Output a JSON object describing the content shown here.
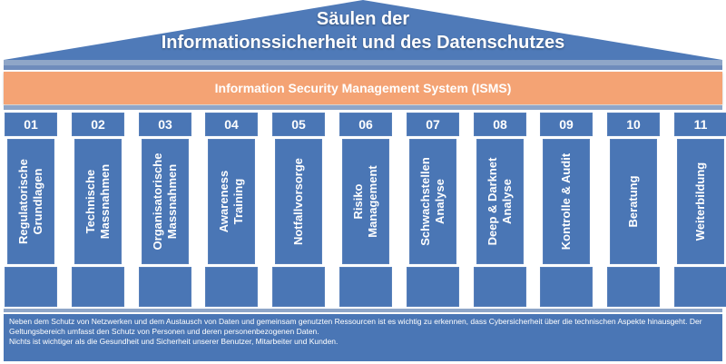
{
  "roof": {
    "title_line1": "Säulen der",
    "title_line2": "Informationssicherheit und des Datenschutzes"
  },
  "isms": {
    "label": "Information Security Management System (ISMS)"
  },
  "pillars": [
    {
      "number": "01",
      "label_line1": "Regulatorische",
      "label_line2": "Grundlagen"
    },
    {
      "number": "02",
      "label_line1": "Technische",
      "label_line2": "Massnahmen"
    },
    {
      "number": "03",
      "label_line1": "Organisatorische",
      "label_line2": "Massnahmen"
    },
    {
      "number": "04",
      "label_line1": "Awareness",
      "label_line2": "Training"
    },
    {
      "number": "05",
      "label_line1": "Notfallvorsorge",
      "label_line2": ""
    },
    {
      "number": "06",
      "label_line1": "Risiko",
      "label_line2": "Management"
    },
    {
      "number": "07",
      "label_line1": "Schwachstellen",
      "label_line2": "Analyse"
    },
    {
      "number": "08",
      "label_line1": "Deep & Darknet",
      "label_line2": "Analyse"
    },
    {
      "number": "09",
      "label_line1": "Kontrolle & Audit",
      "label_line2": ""
    },
    {
      "number": "10",
      "label_line1": "Beratung",
      "label_line2": ""
    },
    {
      "number": "11",
      "label_line1": "Weiterbildung",
      "label_line2": ""
    }
  ],
  "footer": {
    "paragraph1": "Neben dem Schutz von Netzwerken und dem Austausch von Daten und gemeinsam genutzten Ressourcen ist es wichtig zu erkennen, dass Cybersicherheit über die technischen Aspekte hinausgeht. Der Geltungsbereich umfasst den Schutz von Personen und deren personenbezogenen Daten.",
    "paragraph2": "Nichts ist wichtiger als die Gesundheit und Sicherheit unserer Benutzer, Mitarbeiter und Kunden."
  },
  "colors": {
    "pillar_blue": "#4a76b5",
    "roof_blue": "#4f7ab8",
    "isms_orange": "#f4a374",
    "band_light": "#8fa6c8"
  }
}
